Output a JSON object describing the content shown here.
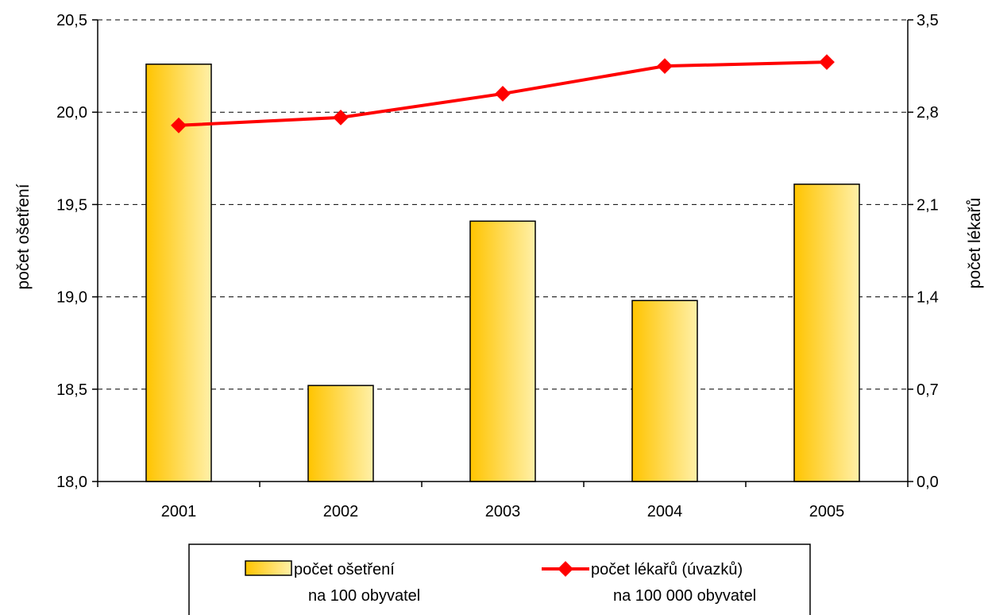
{
  "chart_data": {
    "type": "bar",
    "categories": [
      "2001",
      "2002",
      "2003",
      "2004",
      "2005"
    ],
    "series": [
      {
        "name": "počet ošetření na 100 obyvatel",
        "type": "bar",
        "axis": "left",
        "values": [
          20.26,
          18.52,
          19.41,
          18.98,
          19.61
        ]
      },
      {
        "name": "počet lékařů (úvazků) na 100 000 obyvatel",
        "type": "line",
        "axis": "right",
        "values": [
          2.7,
          2.76,
          2.94,
          3.15,
          3.18
        ]
      }
    ],
    "ylabel_left": "počet ošetření",
    "ylabel_right": "počet lékařů",
    "ylim_left": [
      18.0,
      20.5
    ],
    "ylim_right": [
      0.0,
      3.5
    ],
    "yticks_left": [
      "18,0",
      "18,5",
      "19,0",
      "19,5",
      "20,0",
      "20,5"
    ],
    "yticks_right": [
      "0,0",
      "0,7",
      "1,4",
      "2,1",
      "2,8",
      "3,5"
    ],
    "grid": "horizontal-dashed",
    "legend": {
      "placement": "bottom",
      "items": [
        {
          "line1": "počet ošetření",
          "line2": "na 100 obyvatel"
        },
        {
          "line1": "počet lékařů (úvazků)",
          "line2": "na 100 000 obyvatel"
        }
      ]
    },
    "colors": {
      "bar_dark": "#FFC400",
      "bar_light": "#FFF0A8",
      "line": "#FF0000"
    }
  }
}
